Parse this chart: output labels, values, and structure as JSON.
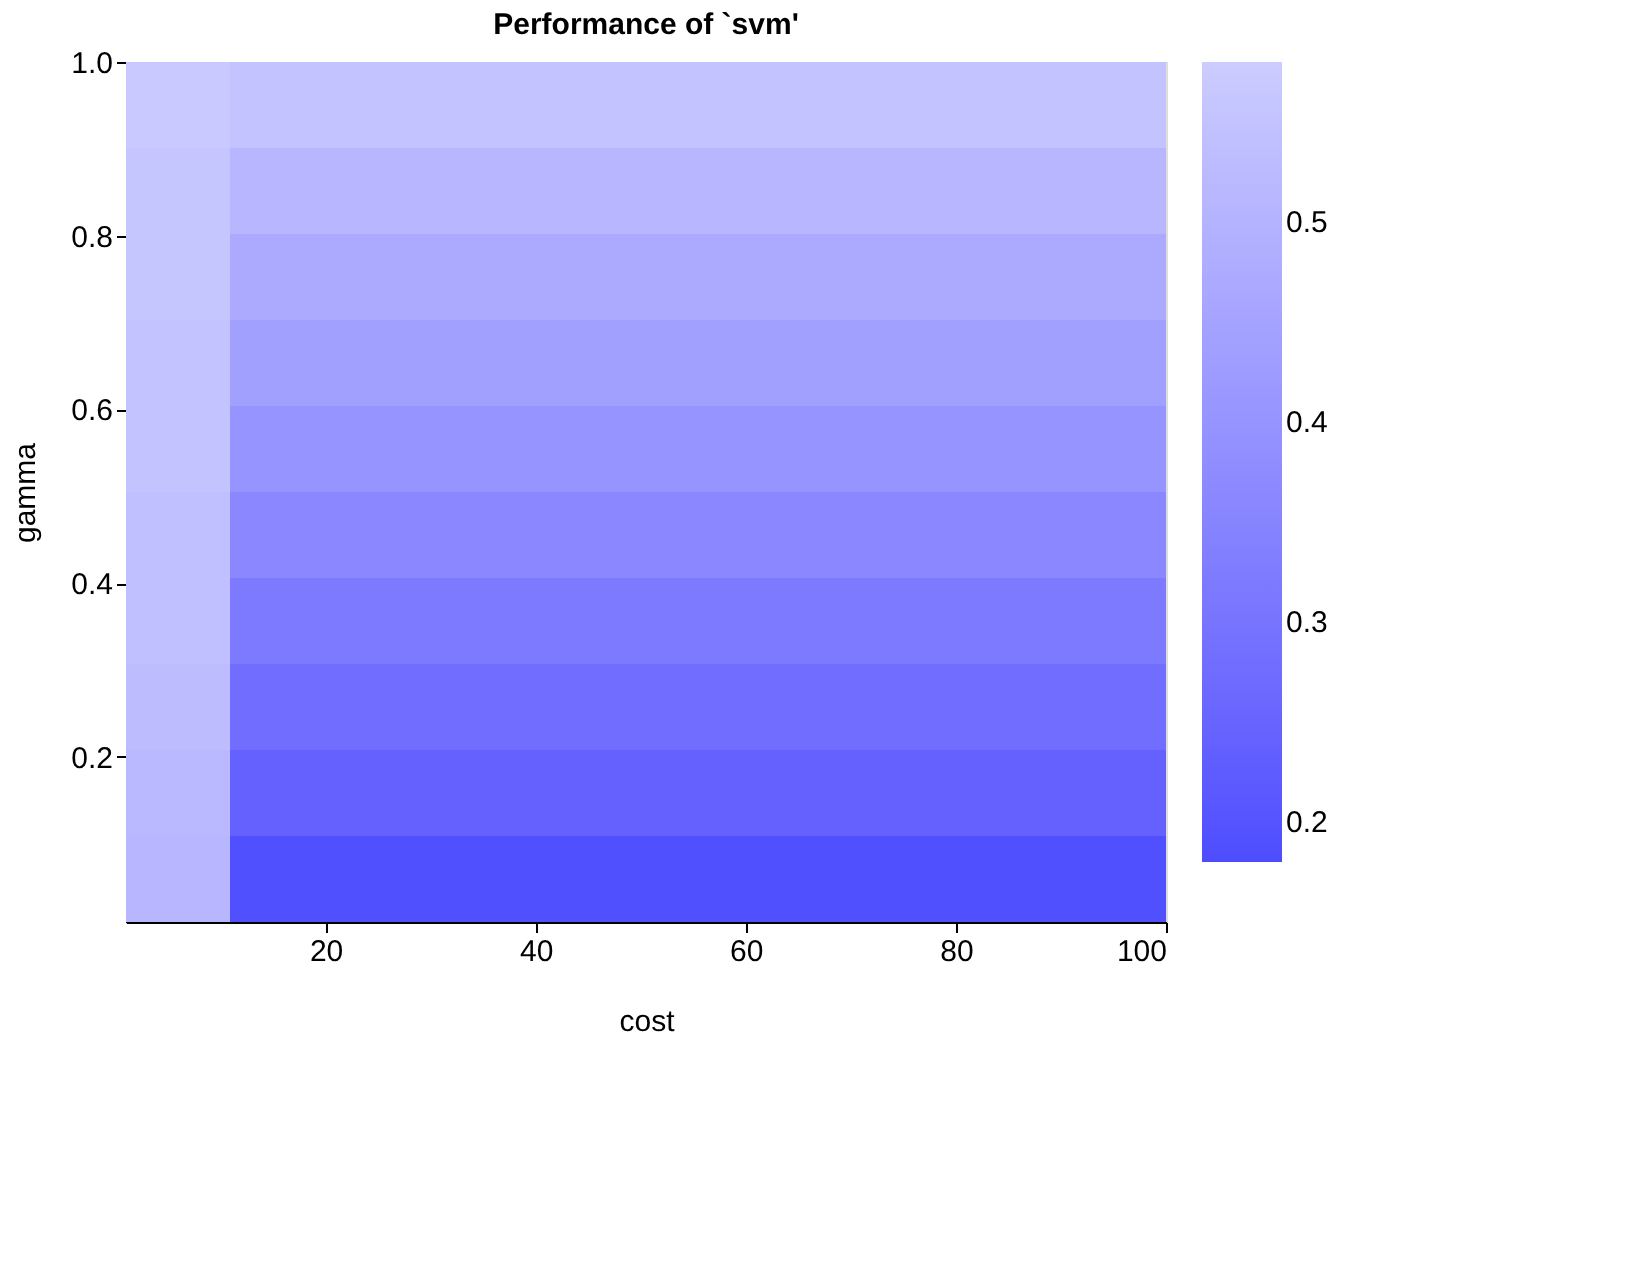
{
  "chart_data": {
    "type": "heatmap",
    "title": "Performance of `svm'",
    "xlabel": "cost",
    "ylabel": "gamma",
    "cells": [
      [
        0.57,
        0.55,
        0.55,
        0.55,
        0.55,
        0.55,
        0.55,
        0.55,
        0.55,
        0.55
      ],
      [
        0.56,
        0.51,
        0.51,
        0.51,
        0.51,
        0.51,
        0.51,
        0.51,
        0.51,
        0.51
      ],
      [
        0.56,
        0.47,
        0.47,
        0.47,
        0.47,
        0.47,
        0.47,
        0.47,
        0.47,
        0.47
      ],
      [
        0.55,
        0.44,
        0.44,
        0.44,
        0.44,
        0.44,
        0.44,
        0.44,
        0.44,
        0.44
      ],
      [
        0.55,
        0.4,
        0.4,
        0.4,
        0.4,
        0.4,
        0.4,
        0.4,
        0.4,
        0.4
      ],
      [
        0.54,
        0.36,
        0.36,
        0.36,
        0.36,
        0.36,
        0.36,
        0.36,
        0.36,
        0.36
      ],
      [
        0.54,
        0.32,
        0.32,
        0.32,
        0.32,
        0.32,
        0.32,
        0.32,
        0.32,
        0.32
      ],
      [
        0.53,
        0.28,
        0.28,
        0.28,
        0.28,
        0.28,
        0.28,
        0.28,
        0.28,
        0.28
      ],
      [
        0.52,
        0.24,
        0.24,
        0.24,
        0.24,
        0.24,
        0.24,
        0.24,
        0.24,
        0.24
      ],
      [
        0.51,
        0.19,
        0.19,
        0.19,
        0.19,
        0.19,
        0.19,
        0.19,
        0.19,
        0.19
      ]
    ],
    "xlim": [
      1,
      100
    ],
    "xticks": [
      20,
      40,
      60,
      80,
      100
    ],
    "ylim": [
      0.01,
      1.0
    ],
    "yticks": [
      0.2,
      0.4,
      0.6,
      0.8,
      {
        "value": 1.0,
        "label": "1.0"
      }
    ],
    "clim": [
      0.18,
      0.58
    ],
    "cticks": [
      0.2,
      0.3,
      0.4,
      0.5
    ],
    "colors": [
      "#4d4dff",
      "#ccccff"
    ]
  }
}
